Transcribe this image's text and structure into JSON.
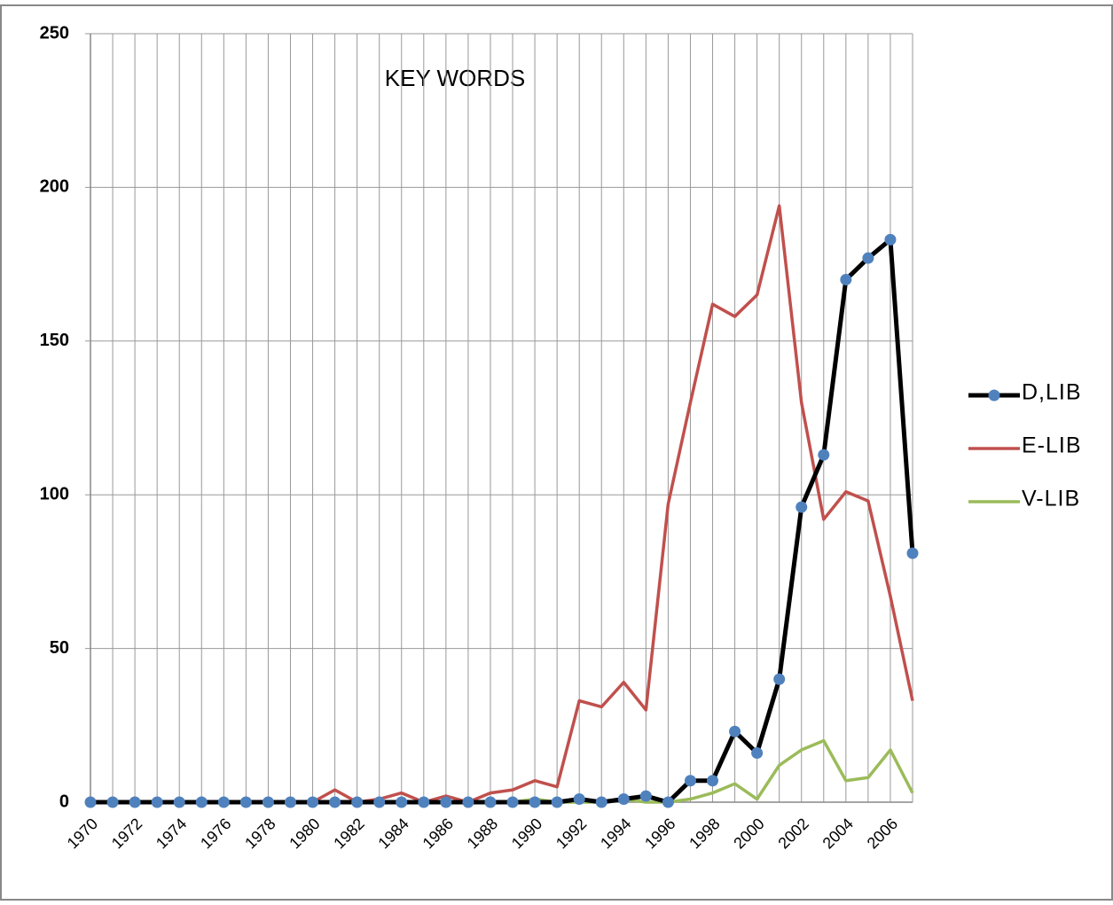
{
  "chart_data": {
    "type": "line",
    "title": "KEY WORDS",
    "categories": [
      "1970",
      null,
      "1972",
      null,
      "1974",
      null,
      "1976",
      null,
      "1978",
      null,
      "1980",
      null,
      "1982",
      null,
      "1984",
      null,
      "1986",
      null,
      "1988",
      null,
      "1990",
      null,
      "1992",
      null,
      "1994",
      null,
      "1996",
      null,
      "1998",
      null,
      "2000",
      null,
      "2002",
      null,
      "2004",
      null,
      "2006",
      null
    ],
    "series": [
      {
        "name": "D,LIB",
        "color": "#000000",
        "marker": "circle",
        "marker_color": "#4f81bd",
        "values": [
          0,
          0,
          0,
          0,
          0,
          0,
          0,
          0,
          0,
          0,
          0,
          0,
          0,
          0,
          0,
          0,
          0,
          0,
          0,
          0,
          0,
          0,
          1,
          0,
          1,
          2,
          0,
          7,
          7,
          23,
          16,
          40,
          96,
          113,
          170,
          177,
          183,
          81
        ]
      },
      {
        "name": "E-LIB",
        "color": "#c0504d",
        "values": [
          0,
          0,
          0,
          0,
          0,
          0,
          0,
          0,
          0,
          0,
          0,
          4,
          0,
          1,
          3,
          0,
          2,
          0,
          3,
          4,
          7,
          5,
          33,
          31,
          39,
          30,
          97,
          130,
          162,
          158,
          165,
          194,
          130,
          92,
          101,
          98,
          67,
          33
        ]
      },
      {
        "name": "V-LIB",
        "color": "#9bbb59",
        "values": [
          0,
          0,
          0,
          0,
          0,
          0,
          0,
          0,
          0,
          0,
          0,
          0,
          0,
          0,
          0,
          0,
          0,
          0,
          0,
          0,
          1,
          0,
          0,
          0,
          1,
          0,
          0,
          1,
          3,
          6,
          1,
          12,
          17,
          20,
          7,
          8,
          17,
          3
        ]
      }
    ],
    "ylim": [
      0,
      250
    ],
    "yticks": [
      0,
      50,
      100,
      150,
      200,
      250
    ],
    "grid": true,
    "legend": "right"
  }
}
